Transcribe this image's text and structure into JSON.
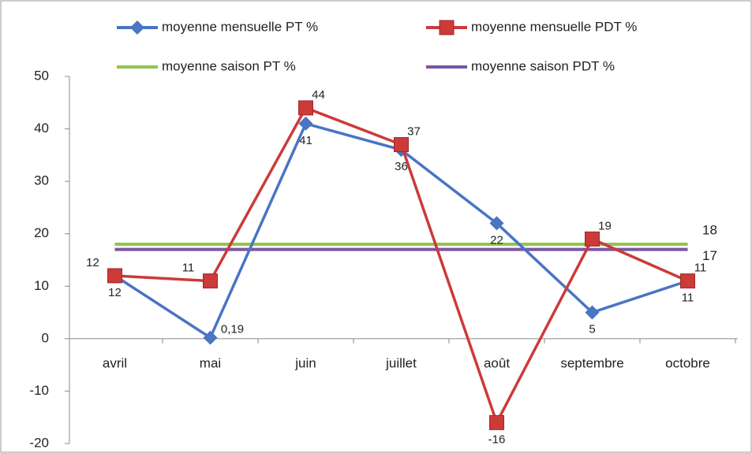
{
  "chart_data": {
    "type": "line",
    "categories": [
      "avril",
      "mai",
      "juin",
      "juillet",
      "août",
      "septembre",
      "octobre"
    ],
    "series": [
      {
        "name": "moyenne mensuelle PT %",
        "color": "#4a74c4",
        "marker": "diamond",
        "values": [
          12,
          0.19,
          41,
          36,
          22,
          5,
          11
        ],
        "value_labels": [
          "12",
          "0,19",
          "41",
          "36",
          "22",
          "5",
          "11"
        ]
      },
      {
        "name": "moyenne mensuelle PDT %",
        "color": "#cc3a3a",
        "marker": "square",
        "values": [
          12,
          11,
          44,
          37,
          -16,
          19,
          11
        ]
      }
    ],
    "reference_lines": [
      {
        "name": "moyenne saison PT %",
        "color": "#93c54b",
        "value": 18
      },
      {
        "name": "moyenne saison PDT %",
        "color": "#7b55a3",
        "value": 17
      }
    ],
    "ylim": [
      -20,
      50
    ],
    "yticks": [
      -20,
      -10,
      0,
      10,
      20,
      30,
      40,
      50
    ],
    "grid": false
  }
}
